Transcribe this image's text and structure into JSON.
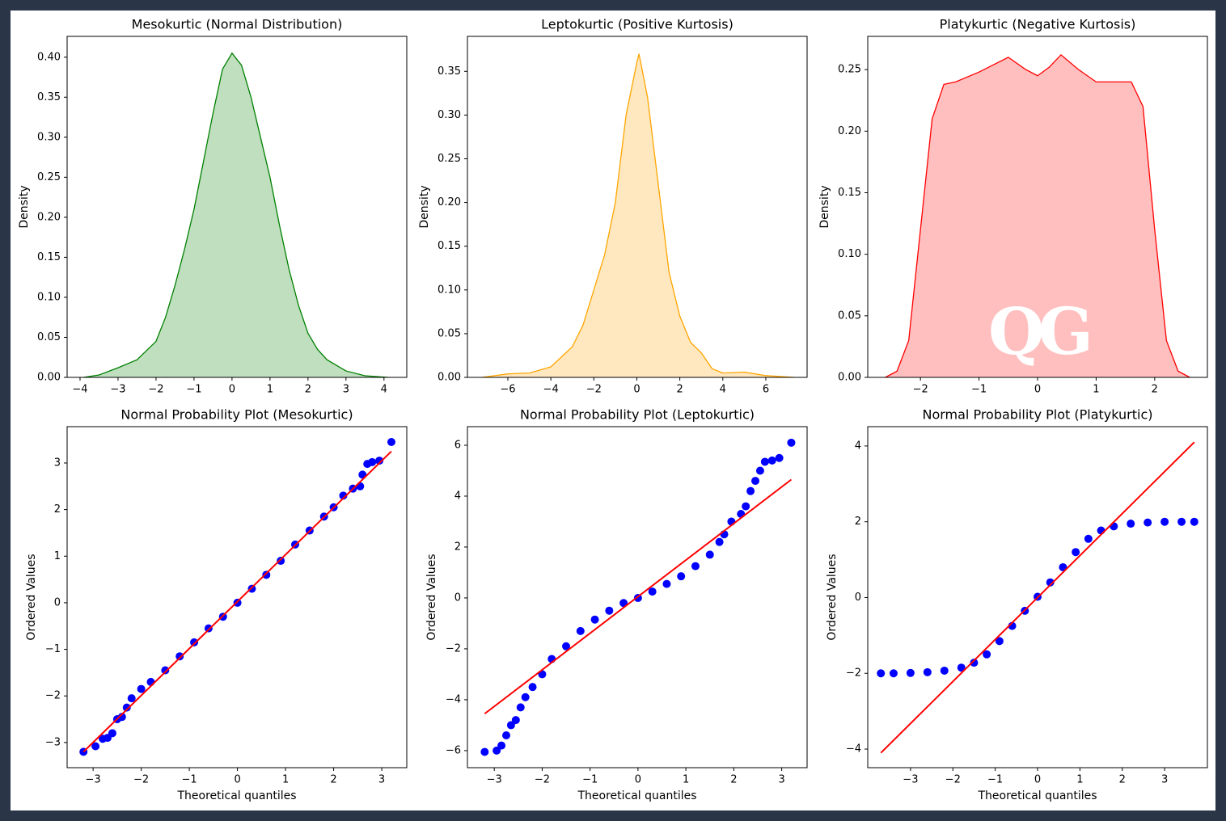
{
  "chart_data": [
    {
      "type": "area",
      "title": "Mesokurtic (Normal Distribution)",
      "ylabel": "Density",
      "color": "green",
      "x": [
        -3.9,
        -3.5,
        -3,
        -2.5,
        -2,
        -1.75,
        -1.5,
        -1.25,
        -1,
        -0.75,
        -0.5,
        -0.25,
        0,
        0.25,
        0.5,
        0.75,
        1,
        1.25,
        1.5,
        1.75,
        2,
        2.25,
        2.5,
        3,
        3.5,
        4.1
      ],
      "values": [
        0,
        0.003,
        0.012,
        0.022,
        0.045,
        0.075,
        0.115,
        0.16,
        0.21,
        0.27,
        0.33,
        0.385,
        0.405,
        0.39,
        0.35,
        0.3,
        0.25,
        0.19,
        0.135,
        0.09,
        0.055,
        0.035,
        0.022,
        0.008,
        0.002,
        0
      ],
      "xlim": [
        -4.34,
        4.6
      ],
      "ylim": [
        0,
        0.426
      ],
      "xticks": [
        {
          "value": -4,
          "label": "−4"
        },
        {
          "value": -3,
          "label": "−3"
        },
        {
          "value": -2,
          "label": "−2"
        },
        {
          "value": -1,
          "label": "−1"
        },
        0,
        1,
        2,
        3,
        4
      ],
      "yticks": [
        {
          "value": 0,
          "label": "0.00"
        },
        0.05,
        {
          "value": 0.1,
          "label": "0.10"
        },
        0.15,
        {
          "value": 0.2,
          "label": "0.20"
        },
        0.25,
        {
          "value": 0.3,
          "label": "0.30"
        },
        0.35,
        {
          "value": 0.4,
          "label": "0.40"
        }
      ]
    },
    {
      "type": "area",
      "title": "Leptokurtic (Positive Kurtosis)",
      "ylabel": "Density",
      "color": "orange",
      "x": [
        -7.2,
        -6,
        -5,
        -4,
        -3,
        -2.5,
        -2,
        -1.5,
        -1,
        -0.5,
        0,
        0.1,
        0.5,
        1,
        1.5,
        2,
        2.5,
        3,
        3.5,
        4,
        5,
        5.5,
        6,
        7.3
      ],
      "values": [
        0,
        0.004,
        0.005,
        0.012,
        0.035,
        0.06,
        0.1,
        0.14,
        0.2,
        0.3,
        0.36,
        0.37,
        0.32,
        0.22,
        0.12,
        0.07,
        0.04,
        0.028,
        0.01,
        0.005,
        0.006,
        0.004,
        0.002,
        0
      ],
      "xlim": [
        -7.88,
        7.92
      ],
      "ylim": [
        0,
        0.39
      ],
      "xticks": [
        {
          "value": -6,
          "label": "−6"
        },
        {
          "value": -4,
          "label": "−4"
        },
        {
          "value": -2,
          "label": "−2"
        },
        0,
        2,
        4,
        6
      ],
      "yticks": [
        {
          "value": 0,
          "label": "0.00"
        },
        0.05,
        {
          "value": 0.1,
          "label": "0.10"
        },
        0.15,
        {
          "value": 0.2,
          "label": "0.20"
        },
        0.25,
        {
          "value": 0.3,
          "label": "0.30"
        },
        0.35
      ]
    },
    {
      "type": "area",
      "title": "Platykurtic (Negative Kurtosis)",
      "ylabel": "Density",
      "color": "red",
      "watermark": "QG",
      "x": [
        -2.6,
        -2.4,
        -2.2,
        -2,
        -1.8,
        -1.6,
        -1.4,
        -1,
        -0.5,
        -0.2,
        0,
        0.2,
        0.4,
        0.7,
        1,
        1.4,
        1.6,
        1.8,
        2,
        2.2,
        2.4,
        2.6
      ],
      "values": [
        0,
        0.005,
        0.03,
        0.12,
        0.21,
        0.238,
        0.24,
        0.248,
        0.26,
        0.25,
        0.245,
        0.252,
        0.262,
        0.25,
        0.24,
        0.24,
        0.24,
        0.22,
        0.12,
        0.03,
        0.005,
        0
      ],
      "xlim": [
        -2.9,
        2.9
      ],
      "ylim": [
        0,
        0.277
      ],
      "xticks": [
        {
          "value": -2,
          "label": "−2"
        },
        {
          "value": -1,
          "label": "−1"
        },
        0,
        1,
        2
      ],
      "yticks": [
        {
          "value": 0,
          "label": "0.00"
        },
        0.05,
        {
          "value": 0.1,
          "label": "0.10"
        },
        0.15,
        {
          "value": 0.2,
          "label": "0.20"
        },
        0.25
      ]
    },
    {
      "type": "scatter",
      "title": "Normal Probability Plot (Mesokurtic)",
      "xlabel": "Theoretical quantiles",
      "ylabel": "Ordered Values",
      "color": "blue",
      "x": [
        -3.2,
        -2.95,
        -2.8,
        -2.7,
        -2.6,
        -2.5,
        -2.4,
        -2.3,
        -2.2,
        -2.0,
        -1.8,
        -1.5,
        -1.2,
        -0.9,
        -0.6,
        -0.3,
        0,
        0.3,
        0.6,
        0.9,
        1.2,
        1.5,
        1.8,
        2.0,
        2.2,
        2.4,
        2.55,
        2.6,
        2.7,
        2.8,
        2.95,
        3.2
      ],
      "values": [
        -3.2,
        -3.08,
        -2.92,
        -2.9,
        -2.8,
        -2.5,
        -2.45,
        -2.25,
        -2.05,
        -1.85,
        -1.7,
        -1.45,
        -1.15,
        -0.85,
        -0.55,
        -0.3,
        0,
        0.3,
        0.6,
        0.9,
        1.25,
        1.55,
        1.85,
        2.05,
        2.3,
        2.45,
        2.5,
        2.75,
        2.98,
        3.02,
        3.05,
        3.45
      ],
      "fit_line": {
        "x": [
          -3.2,
          3.2
        ],
        "values": [
          -3.2,
          3.25
        ],
        "color": "red"
      },
      "xlim": [
        -3.54,
        3.52
      ],
      "ylim": [
        -3.54,
        3.78
      ],
      "xticks": [
        {
          "value": -3,
          "label": "−3"
        },
        {
          "value": -2,
          "label": "−2"
        },
        {
          "value": -1,
          "label": "−1"
        },
        0,
        1,
        2,
        3
      ],
      "yticks": [
        {
          "value": -3,
          "label": "−3"
        },
        {
          "value": -2,
          "label": "−2"
        },
        {
          "value": -1,
          "label": "−1"
        },
        0,
        1,
        2,
        3
      ]
    },
    {
      "type": "scatter",
      "title": "Normal Probability Plot (Leptokurtic)",
      "xlabel": "Theoretical quantiles",
      "ylabel": "Ordered Values",
      "color": "blue",
      "x": [
        -3.2,
        -2.95,
        -2.85,
        -2.75,
        -2.65,
        -2.55,
        -2.45,
        -2.35,
        -2.2,
        -2.0,
        -1.8,
        -1.5,
        -1.2,
        -0.9,
        -0.6,
        -0.3,
        0,
        0.3,
        0.6,
        0.9,
        1.2,
        1.5,
        1.7,
        1.8,
        1.95,
        2.15,
        2.25,
        2.35,
        2.45,
        2.55,
        2.65,
        2.8,
        2.95,
        3.2
      ],
      "values": [
        -6.05,
        -6.0,
        -5.8,
        -5.4,
        -5.0,
        -4.8,
        -4.3,
        -3.9,
        -3.5,
        -3.0,
        -2.4,
        -1.9,
        -1.3,
        -0.85,
        -0.5,
        -0.2,
        0,
        0.25,
        0.55,
        0.85,
        1.25,
        1.7,
        2.2,
        2.5,
        3.0,
        3.3,
        3.6,
        4.2,
        4.6,
        5.0,
        5.35,
        5.4,
        5.5,
        6.1
      ],
      "fit_line": {
        "x": [
          -3.2,
          3.2
        ],
        "values": [
          -4.55,
          4.65
        ],
        "color": "red"
      },
      "xlim": [
        -3.56,
        3.53
      ],
      "ylim": [
        -6.67,
        6.73
      ],
      "xticks": [
        {
          "value": -3,
          "label": "−3"
        },
        {
          "value": -2,
          "label": "−2"
        },
        {
          "value": -1,
          "label": "−1"
        },
        0,
        1,
        2,
        3
      ],
      "yticks": [
        {
          "value": -6,
          "label": "−6"
        },
        {
          "value": -4,
          "label": "−4"
        },
        {
          "value": -2,
          "label": "−2"
        },
        0,
        2,
        4,
        6
      ]
    },
    {
      "type": "scatter",
      "title": "Normal Probability Plot (Platykurtic)",
      "xlabel": "Theoretical quantiles",
      "ylabel": "Ordered Values",
      "color": "blue",
      "x": [
        -3.7,
        -3.4,
        -3.0,
        -2.6,
        -2.2,
        -1.8,
        -1.5,
        -1.2,
        -0.9,
        -0.6,
        -0.3,
        0,
        0.3,
        0.6,
        0.9,
        1.2,
        1.5,
        1.8,
        2.2,
        2.6,
        3.0,
        3.4,
        3.7
      ],
      "values": [
        -2.0,
        -2.0,
        -1.99,
        -1.97,
        -1.93,
        -1.85,
        -1.72,
        -1.5,
        -1.15,
        -0.75,
        -0.35,
        0.02,
        0.4,
        0.8,
        1.2,
        1.55,
        1.77,
        1.88,
        1.95,
        1.98,
        2.0,
        2.0,
        2.0
      ],
      "fit_line": {
        "x": [
          -3.7,
          3.7
        ],
        "values": [
          -4.1,
          4.1
        ],
        "color": "red"
      },
      "xlim": [
        -4.01,
        4.01
      ],
      "ylim": [
        -4.49,
        4.51
      ],
      "xticks": [
        {
          "value": -3,
          "label": "−3"
        },
        {
          "value": -2,
          "label": "−2"
        },
        {
          "value": -1,
          "label": "−1"
        },
        0,
        1,
        2,
        3
      ],
      "yticks": [
        {
          "value": -4,
          "label": "−4"
        },
        {
          "value": -2,
          "label": "−2"
        },
        0,
        2,
        4
      ]
    }
  ]
}
